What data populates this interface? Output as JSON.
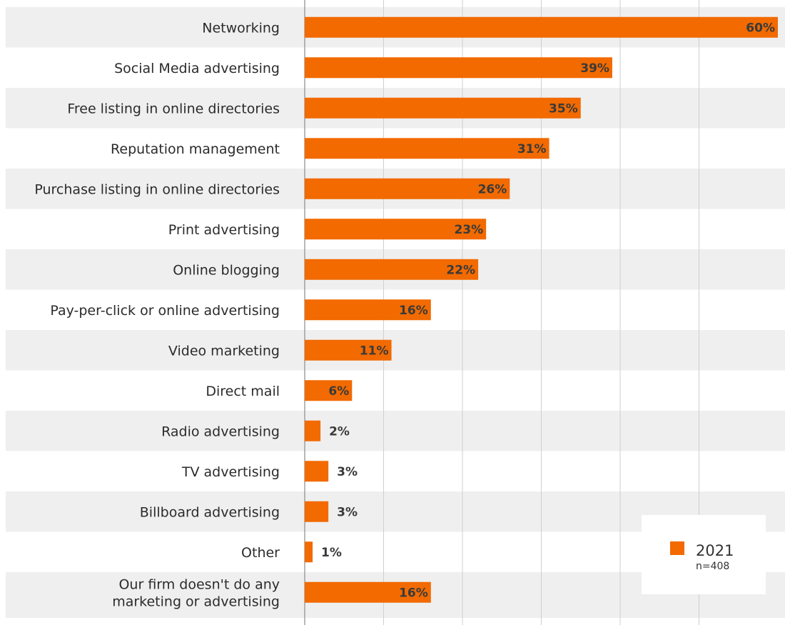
{
  "chart_data": {
    "type": "bar",
    "orientation": "horizontal",
    "categories": [
      "Networking",
      "Social Media advertising",
      "Free listing in online directories",
      "Reputation management",
      "Purchase listing in online directories",
      "Print advertising",
      "Online blogging",
      "Pay-per-click or online advertising",
      "Video marketing",
      "Direct mail",
      "Radio advertising",
      "TV advertising",
      "Billboard advertising",
      "Other",
      "Our firm doesn't do any\nmarketing or advertising"
    ],
    "series": [
      {
        "name": "2021",
        "values": [
          60,
          39,
          35,
          31,
          26,
          23,
          22,
          16,
          11,
          6,
          2,
          3,
          3,
          1,
          16
        ]
      }
    ],
    "value_labels": [
      "60%",
      "39%",
      "35%",
      "31%",
      "26%",
      "23%",
      "22%",
      "16%",
      "11%",
      "6%",
      "2%",
      "3%",
      "3%",
      "1%",
      "16%"
    ],
    "xlim": [
      0,
      60
    ],
    "gridlines": [
      0,
      10,
      20,
      30,
      40,
      50,
      60
    ],
    "grid": true,
    "legend": {
      "placement": "bottom-right",
      "label": "2021",
      "note": "n=408"
    },
    "colors": {
      "bar": "#f26a00",
      "stripe": "#efefef",
      "grid": "#cfcfcf",
      "axis": "#8a8a8a",
      "legend_bg": "#ffffff"
    }
  }
}
